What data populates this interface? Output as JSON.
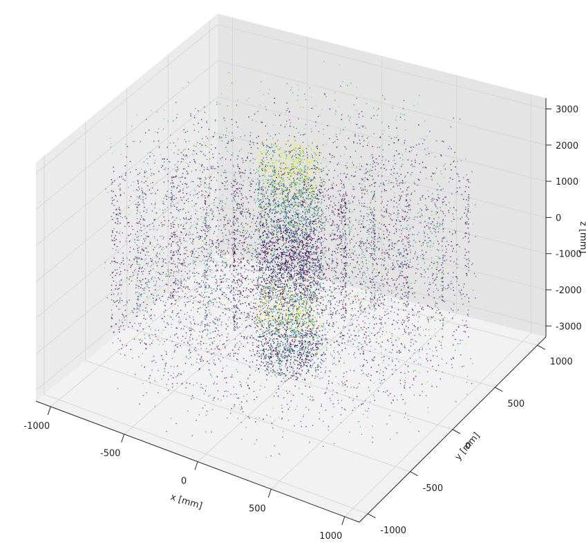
{
  "chart_data": {
    "type": "scatter",
    "subtype": "3d-point-cloud",
    "title": "",
    "xlabel": "x [mm]",
    "ylabel": "y [mm]",
    "zlabel": "z [mm]",
    "xlim": [
      -1100,
      1100
    ],
    "ylim": [
      -1100,
      1100
    ],
    "zlim": [
      -3300,
      3300
    ],
    "xticks": [
      "-1000",
      "-500",
      "0",
      "500",
      "1000"
    ],
    "yticks": [
      "-1000",
      "-500",
      "0",
      "500",
      "1000"
    ],
    "zticks": [
      "-3000",
      "-2000",
      "-1000",
      "0",
      "1000",
      "2000",
      "3000"
    ],
    "x_tick_values": [
      -1000,
      -500,
      0,
      500,
      1000
    ],
    "y_tick_values": [
      -1000,
      -500,
      0,
      500,
      1000
    ],
    "z_tick_values": [
      -3000,
      -2000,
      -1000,
      0,
      1000,
      2000,
      3000
    ],
    "grid": true,
    "colormap": "viridis",
    "colormap_colors": [
      "#440154",
      "#3b528b",
      "#21918c",
      "#5ec962",
      "#fde725"
    ],
    "pane_colors": [
      "#f2f2f2",
      "#ebebeb",
      "#e4e4e4"
    ],
    "structure": {
      "central_cylinder": {
        "radius": 200,
        "z_range": [
          -3000,
          3000
        ]
      },
      "barrel_layers_radius": [
        330,
        500,
        700,
        900,
        1050
      ],
      "barrel_layers_z_range": [
        -2000,
        2000
      ],
      "outer_shell_radius": [
        500,
        1100
      ],
      "outer_shell_z_range": [
        -3000,
        3000
      ]
    }
  }
}
